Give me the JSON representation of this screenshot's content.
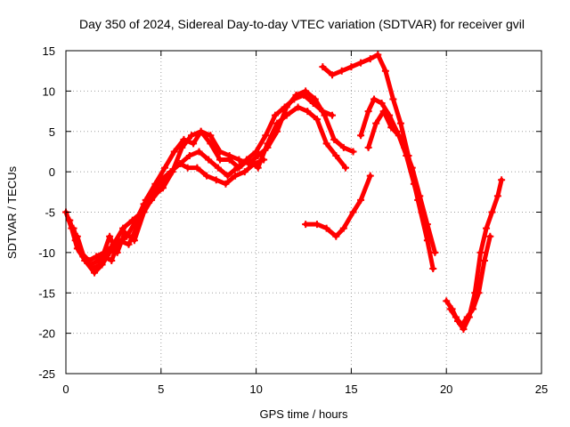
{
  "chart_data": {
    "type": "scatter",
    "title": "Day 350 of 2024, Sidereal Day-to-day VTEC variation (SDTVAR) for receiver gvil",
    "xlabel": "GPS time / hours",
    "ylabel": "SDTVAR / TECUs",
    "xlim": [
      0,
      25
    ],
    "ylim": [
      -25,
      15
    ],
    "x_ticks": [
      "0",
      "5",
      "10",
      "15",
      "20",
      "25"
    ],
    "y_ticks": [
      "-25",
      "-20",
      "-15",
      "-10",
      "-5",
      "0",
      "5",
      "10",
      "15"
    ],
    "grid": true,
    "marker": "+",
    "color": "#ff0000",
    "series": [
      {
        "x": [
          0.0,
          0.3,
          0.6,
          1.0,
          1.4,
          1.8,
          2.1,
          2.5,
          3.0,
          3.5,
          4.0,
          4.5,
          5.0,
          5.5,
          6.0,
          6.5,
          7.0,
          7.5,
          8.0,
          8.5,
          9.0,
          9.5,
          10.0,
          10.5,
          11.0,
          11.5,
          12.0,
          12.5,
          13.0,
          13.5,
          14.0
        ],
        "y": [
          -5,
          -7,
          -9.5,
          -11,
          -12,
          -11.5,
          -10,
          -9,
          -7,
          -6,
          -5,
          -3.5,
          -2,
          0,
          1,
          2,
          2.5,
          1.5,
          0.5,
          -0.5,
          0.5,
          1.5,
          2.5,
          4.5,
          7,
          8,
          9,
          9.5,
          8.5,
          7.5,
          7
        ]
      },
      {
        "x": [
          0.2,
          0.5,
          0.9,
          1.3,
          1.7,
          2.0,
          2.4,
          2.8,
          3.3,
          3.8,
          4.2,
          4.7,
          5.2,
          5.7,
          6.2,
          6.7,
          7.1,
          7.6,
          8.1,
          8.6,
          9.1,
          9.6,
          10.1,
          10.6,
          11.1,
          11.6,
          12.2,
          12.7,
          13.2,
          13.7,
          14.2,
          14.7
        ],
        "y": [
          -6,
          -8.5,
          -10.5,
          -11.5,
          -11,
          -10.5,
          -11,
          -8.5,
          -9,
          -6.5,
          -3.5,
          -1.5,
          0.5,
          2.5,
          4,
          3.5,
          5,
          3.5,
          1.5,
          1.5,
          0.5,
          1.5,
          0.5,
          3.5,
          6,
          7,
          8,
          7.5,
          6.5,
          3.5,
          2,
          0.5
        ]
      },
      {
        "x": [
          0.4,
          0.8,
          1.2,
          1.6,
          2.0,
          2.3,
          2.7,
          3.1,
          3.6,
          4.1,
          4.6,
          5.1,
          5.6,
          6.1,
          6.6,
          7.1,
          7.6,
          8.1,
          8.6,
          9.1,
          9.6,
          10.1,
          10.6,
          11.1,
          11.6,
          12.1,
          12.6,
          13.1,
          13.6,
          14.1,
          14.6,
          15.1
        ],
        "y": [
          -7,
          -10,
          -11,
          -10.5,
          -10,
          -8,
          -10,
          -7.5,
          -8.5,
          -5,
          -3,
          -2,
          0,
          3,
          4.5,
          5,
          4.5,
          2.5,
          2,
          1.5,
          1,
          2,
          3,
          5,
          8,
          9.5,
          10,
          9,
          7,
          4,
          3,
          2.5
        ]
      },
      {
        "x": [
          0.6,
          1.0,
          1.5,
          1.9,
          2.3,
          2.7,
          3.2,
          3.7,
          4.1,
          4.6,
          5.0,
          5.5,
          6.0,
          6.4,
          6.9,
          7.4,
          7.9,
          8.4,
          8.9,
          9.4,
          9.9,
          10.4
        ],
        "y": [
          -8,
          -11,
          -12.5,
          -11.5,
          -10,
          -9,
          -8,
          -6,
          -4,
          -2.5,
          -1,
          0,
          1,
          0.5,
          0.5,
          -0.5,
          -1,
          -1.5,
          -0.5,
          0,
          1,
          1.5
        ]
      },
      {
        "x": [
          12.6,
          13.2,
          13.7,
          14.2,
          14.6,
          15.1,
          15.5,
          16.0
        ],
        "y": [
          -6.5,
          -6.5,
          -7,
          -8,
          -7,
          -5,
          -3.5,
          -0.5
        ]
      },
      {
        "x": [
          13.5,
          14.0,
          14.5,
          15.0,
          15.5,
          16.0,
          16.4,
          16.8,
          17.2,
          17.6,
          18.0,
          18.5,
          19.0,
          19.3
        ],
        "y": [
          13,
          12,
          12.5,
          13,
          13.5,
          14,
          14.5,
          12.5,
          9,
          6,
          2,
          -3.5,
          -8.5,
          -12
        ]
      },
      {
        "x": [
          15.5,
          15.9,
          16.2,
          16.6,
          17.0,
          17.4,
          17.8,
          18.2,
          18.6,
          19.0,
          19.4
        ],
        "y": [
          4.5,
          7.5,
          9,
          8.5,
          7,
          5,
          3,
          0.5,
          -3,
          -6.5,
          -10
        ]
      },
      {
        "x": [
          15.9,
          16.3,
          16.7,
          17.1,
          17.5,
          17.9,
          18.3,
          18.7
        ],
        "y": [
          3,
          6,
          7.5,
          5.5,
          4.5,
          2,
          -1.5,
          -5
        ]
      },
      {
        "x": [
          20.0,
          20.3,
          20.6,
          20.9,
          21.2,
          21.5,
          21.8,
          22.1,
          22.4,
          22.7,
          22.9
        ],
        "y": [
          -16,
          -17,
          -18.5,
          -19.5,
          -18,
          -15,
          -10,
          -7,
          -5,
          -3,
          -1
        ]
      },
      {
        "x": [
          20.2,
          20.5,
          20.8,
          21.1,
          21.4,
          21.7,
          22.0,
          22.3
        ],
        "y": [
          -17,
          -18,
          -19,
          -18,
          -17,
          -15,
          -11,
          -8
        ]
      }
    ]
  }
}
